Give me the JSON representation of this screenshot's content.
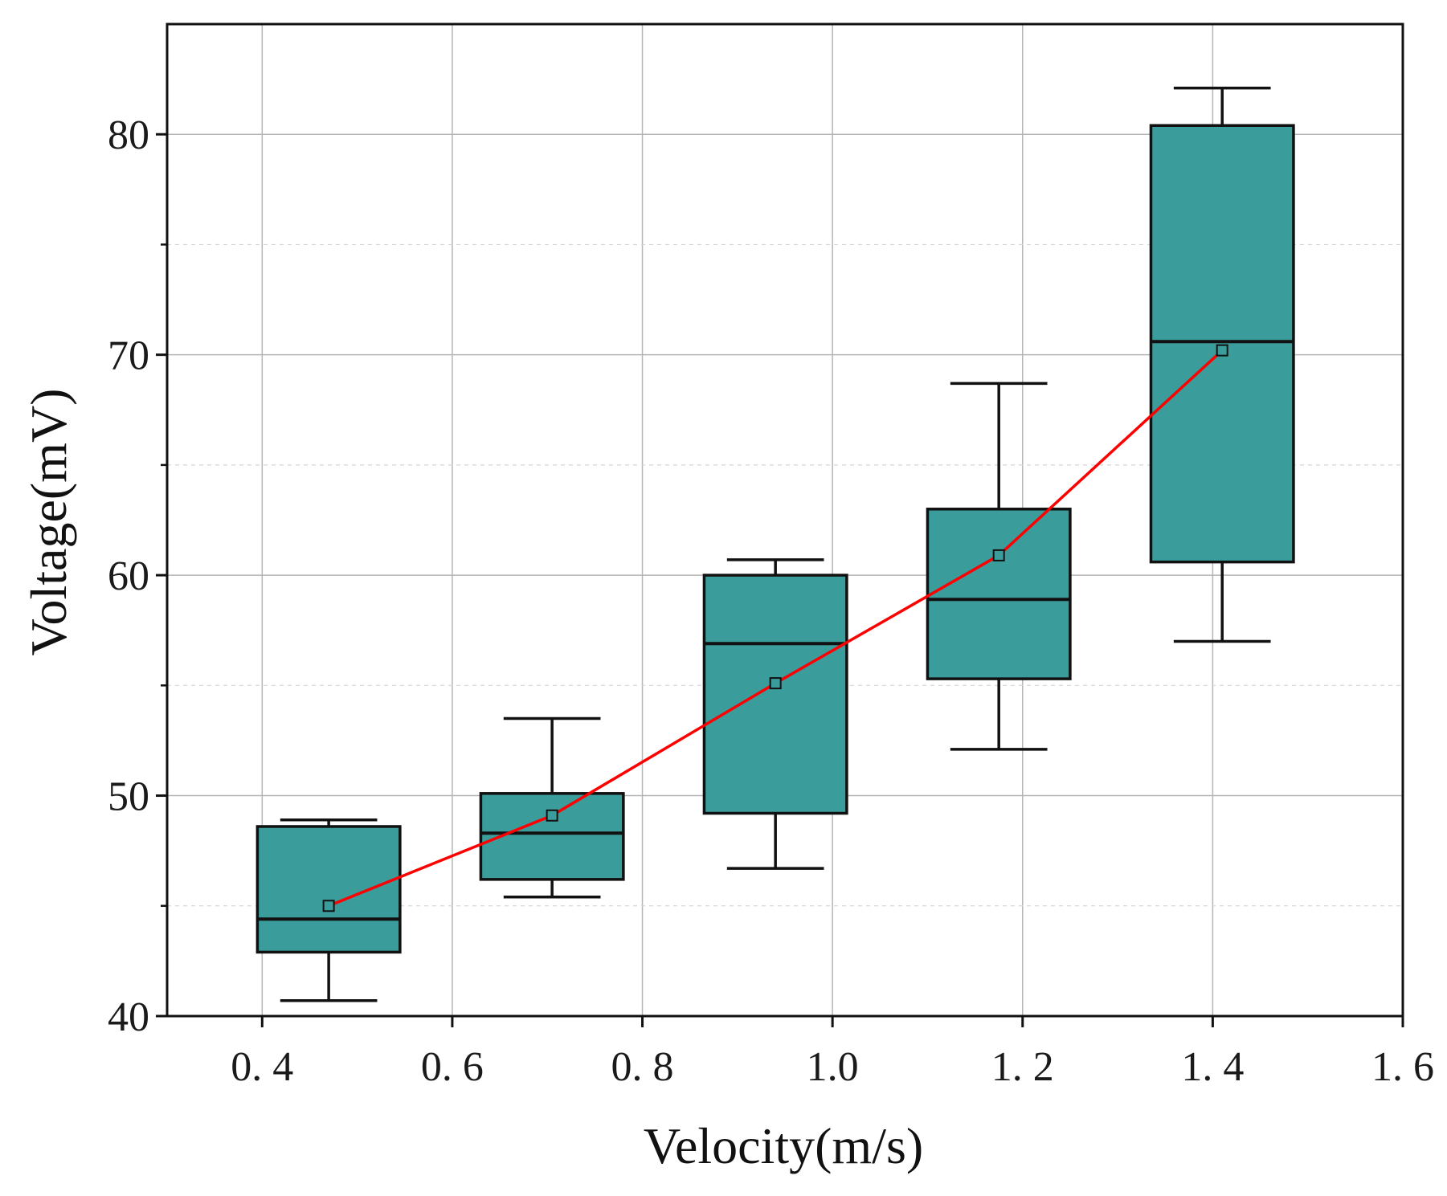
{
  "chart_data": {
    "type": "box",
    "title": "",
    "xlabel": "Velocity(m/s)",
    "ylabel": "Voltage(mV)",
    "xlim": [
      0.3,
      1.6
    ],
    "ylim": [
      40,
      85
    ],
    "x_ticks": [
      0.4,
      0.6,
      0.8,
      1.0,
      1.2,
      1.4,
      1.6
    ],
    "x_tick_labels": [
      "0. 4",
      "0. 6",
      "0. 8",
      "1.0",
      "1. 2",
      "1. 4",
      "1. 6"
    ],
    "y_ticks": [
      40,
      50,
      60,
      70,
      80
    ],
    "y_tick_labels": [
      "40",
      "50",
      "60",
      "70",
      "80"
    ],
    "y_minor_ticks": [
      45,
      55,
      65,
      75
    ],
    "grid": true,
    "box_width": 0.15,
    "boxes": [
      {
        "x": 0.47,
        "whisker_low": 40.7,
        "q1": 42.9,
        "median": 44.4,
        "q3": 48.6,
        "whisker_high": 48.9,
        "mean": 45.0
      },
      {
        "x": 0.705,
        "whisker_low": 45.4,
        "q1": 46.2,
        "median": 48.3,
        "q3": 50.1,
        "whisker_high": 53.5,
        "mean": 49.1
      },
      {
        "x": 0.94,
        "whisker_low": 46.7,
        "q1": 49.2,
        "median": 56.9,
        "q3": 60.0,
        "whisker_high": 60.7,
        "mean": 55.1
      },
      {
        "x": 1.175,
        "whisker_low": 52.1,
        "q1": 55.3,
        "median": 58.9,
        "q3": 63.0,
        "whisker_high": 68.7,
        "mean": 60.9
      },
      {
        "x": 1.41,
        "whisker_low": 57.0,
        "q1": 60.6,
        "median": 70.6,
        "q3": 80.4,
        "whisker_high": 82.1,
        "mean": 70.2
      }
    ],
    "mean_line": {
      "name": "mean",
      "color": "#ff0000"
    },
    "colors": {
      "box_fill": "#3a9c9b",
      "box_stroke": "#111111",
      "grid_major": "#b5b5b5",
      "grid_minor": "#d6d6d6",
      "axis": "#111111"
    }
  }
}
